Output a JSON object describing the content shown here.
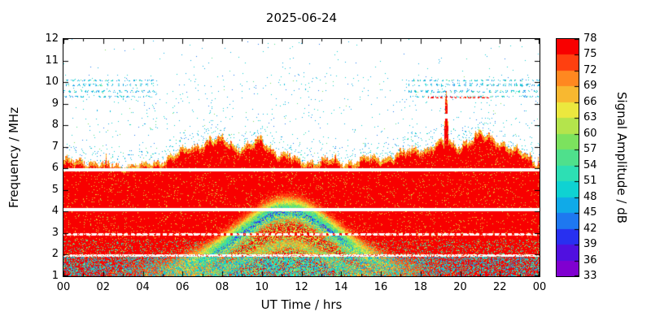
{
  "title": "2025-06-24",
  "colors": {
    "background": "#ffffff",
    "axis_text": "#000000"
  },
  "x_axis": {
    "label": "UT Time / hrs",
    "tick_labels": [
      "00",
      "02",
      "04",
      "06",
      "08",
      "10",
      "12",
      "14",
      "16",
      "18",
      "20",
      "22",
      "00"
    ],
    "range_hours": [
      0,
      24
    ]
  },
  "y_axis": {
    "label": "Frequency / MHz",
    "tick_labels": [
      "1",
      "2",
      "3",
      "4",
      "5",
      "6",
      "7",
      "8",
      "9",
      "10",
      "11",
      "12"
    ],
    "range_mhz": [
      1,
      12
    ]
  },
  "colorbar": {
    "label": "Signal Amplitude / dB",
    "tick_values": [
      33,
      36,
      39,
      42,
      45,
      48,
      51,
      54,
      57,
      60,
      63,
      66,
      69,
      72,
      75,
      78
    ],
    "range_db": [
      33,
      78
    ],
    "band_colors_bottom_to_top": [
      "#8000d0",
      "#5010e0",
      "#2830f0",
      "#1e78f0",
      "#10aae8",
      "#0fd2d2",
      "#2ddfb4",
      "#4fe08c",
      "#7ce25e",
      "#b4e44c",
      "#ece83e",
      "#f8b830",
      "#ff8820",
      "#ff4010",
      "#f80000"
    ]
  },
  "chart_data": {
    "type": "heatmap",
    "title": "2025-06-24",
    "xlabel": "UT Time / hrs",
    "ylabel": "Frequency / MHz",
    "x_range": [
      0,
      24
    ],
    "ylim": [
      1,
      12
    ],
    "amplitude_range_db": [
      33,
      78
    ],
    "no_signal_rendered_as": "white (below 33 dB)",
    "strong_signal_db": 76,
    "strong_signal_top_mhz": {
      "hours": [
        0,
        1,
        2,
        3,
        4,
        5,
        6,
        7,
        8,
        9,
        10,
        11,
        12,
        13,
        14,
        15,
        16,
        17,
        18,
        19,
        20,
        21,
        22,
        23,
        24
      ],
      "mhz": [
        6.3,
        6.4,
        6.1,
        6.2,
        6.1,
        6.4,
        6.8,
        7.2,
        7.4,
        7.0,
        7.3,
        6.7,
        6.3,
        6.4,
        6.3,
        6.4,
        6.5,
        6.7,
        6.9,
        7.2,
        7.1,
        7.6,
        7.3,
        6.7,
        6.3
      ]
    },
    "narrow_spike": {
      "hour": 19.3,
      "top_mhz": 9.6,
      "width_hours": 0.35
    },
    "quiet_white_bands_mhz": [
      [
        5.85,
        6.0
      ],
      [
        4.02,
        4.18
      ],
      [
        2.88,
        2.98
      ],
      [
        1.92,
        2.02
      ]
    ],
    "daytime_absorption_arch": {
      "center_hour": 11.3,
      "peak_mhz": 4.1,
      "base_mhz": 1.3,
      "half_width_hours": 3.4,
      "min_db_in_arch": 50
    },
    "secondary_arch": {
      "center_hour": 11.3,
      "peak_mhz": 2.5,
      "base_mhz": 1.0,
      "half_width_hours": 2.6
    },
    "low_band_noise_mhz": [
      1.0,
      2.0
    ],
    "night_hours": [
      [
        0,
        4.6
      ],
      [
        17.4,
        24
      ]
    ],
    "night_interference_lines_mhz": [
      9.32,
      9.58,
      9.86,
      10.08
    ],
    "red_dashed_line": {
      "mhz": 9.3,
      "hours": [
        18.4,
        21.6
      ],
      "db": 74
    },
    "speckle_db_range": [
      44,
      51
    ],
    "legend_position": "right colorbar",
    "grid": false
  }
}
